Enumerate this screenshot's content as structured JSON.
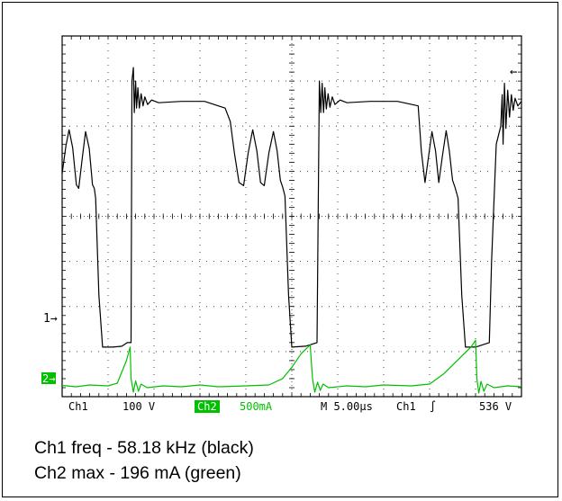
{
  "chart_data": {
    "type": "line",
    "x_unit": "divisions",
    "x_range": [
      0,
      10
    ],
    "y_range": [
      -4,
      4
    ],
    "grid": true,
    "series": [
      {
        "name": "Ch1",
        "color": "#000000",
        "points": [
          [
            0.0,
            0.95
          ],
          [
            0.08,
            1.55
          ],
          [
            0.15,
            1.92
          ],
          [
            0.23,
            1.52
          ],
          [
            0.31,
            0.7
          ],
          [
            0.36,
            0.62
          ],
          [
            0.44,
            1.3
          ],
          [
            0.51,
            1.88
          ],
          [
            0.59,
            1.5
          ],
          [
            0.66,
            0.7
          ],
          [
            0.7,
            0.62
          ],
          [
            0.73,
            0.4
          ],
          [
            0.8,
            -1.75
          ],
          [
            0.88,
            -2.9
          ],
          [
            1.1,
            -2.9
          ],
          [
            1.3,
            -2.88
          ],
          [
            1.42,
            -2.8
          ],
          [
            1.5,
            -2.8
          ],
          [
            1.52,
            3.0
          ],
          [
            1.55,
            3.3
          ],
          [
            1.57,
            2.3
          ],
          [
            1.6,
            3.0
          ],
          [
            1.62,
            2.4
          ],
          [
            1.65,
            2.85
          ],
          [
            1.68,
            2.4
          ],
          [
            1.72,
            2.72
          ],
          [
            1.76,
            2.45
          ],
          [
            1.8,
            2.65
          ],
          [
            1.86,
            2.48
          ],
          [
            1.95,
            2.58
          ],
          [
            2.1,
            2.52
          ],
          [
            2.6,
            2.55
          ],
          [
            3.1,
            2.55
          ],
          [
            3.55,
            2.4
          ],
          [
            3.66,
            2.1
          ],
          [
            3.75,
            1.4
          ],
          [
            3.85,
            0.75
          ],
          [
            3.95,
            0.68
          ],
          [
            4.05,
            1.4
          ],
          [
            4.15,
            1.92
          ],
          [
            4.24,
            1.45
          ],
          [
            4.32,
            0.75
          ],
          [
            4.4,
            0.68
          ],
          [
            4.5,
            1.4
          ],
          [
            4.6,
            1.88
          ],
          [
            4.68,
            1.45
          ],
          [
            4.75,
            0.8
          ],
          [
            4.8,
            0.65
          ],
          [
            4.85,
            0.45
          ],
          [
            4.93,
            -1.75
          ],
          [
            5.0,
            -2.9
          ],
          [
            5.3,
            -2.88
          ],
          [
            5.55,
            -2.8
          ],
          [
            5.6,
            3.0
          ],
          [
            5.63,
            2.3
          ],
          [
            5.66,
            2.95
          ],
          [
            5.69,
            2.3
          ],
          [
            5.72,
            2.85
          ],
          [
            5.75,
            2.38
          ],
          [
            5.79,
            2.72
          ],
          [
            5.83,
            2.42
          ],
          [
            5.88,
            2.65
          ],
          [
            5.94,
            2.48
          ],
          [
            6.05,
            2.58
          ],
          [
            6.2,
            2.52
          ],
          [
            6.7,
            2.55
          ],
          [
            7.3,
            2.55
          ],
          [
            7.75,
            2.45
          ],
          [
            7.82,
            1.45
          ],
          [
            7.9,
            0.75
          ],
          [
            7.98,
            1.35
          ],
          [
            8.05,
            1.88
          ],
          [
            8.13,
            1.45
          ],
          [
            8.2,
            0.75
          ],
          [
            8.28,
            1.35
          ],
          [
            8.36,
            1.9
          ],
          [
            8.43,
            1.45
          ],
          [
            8.5,
            0.8
          ],
          [
            8.55,
            0.65
          ],
          [
            8.62,
            0.4
          ],
          [
            8.7,
            -1.75
          ],
          [
            8.78,
            -2.9
          ],
          [
            9.0,
            -2.9
          ],
          [
            9.3,
            -2.8
          ],
          [
            9.35,
            -1.0
          ],
          [
            9.45,
            1.6
          ],
          [
            9.55,
            2.0
          ],
          [
            9.58,
            2.7
          ],
          [
            9.6,
            1.6
          ],
          [
            9.63,
            2.95
          ],
          [
            9.66,
            1.95
          ],
          [
            9.7,
            2.8
          ],
          [
            9.74,
            2.2
          ],
          [
            9.78,
            2.7
          ],
          [
            9.82,
            2.35
          ],
          [
            9.86,
            2.62
          ],
          [
            9.92,
            2.45
          ],
          [
            10.0,
            2.55
          ]
        ]
      },
      {
        "name": "Ch2",
        "color": "#00c000",
        "points": [
          [
            0.0,
            -3.75
          ],
          [
            0.3,
            -3.78
          ],
          [
            0.6,
            -3.74
          ],
          [
            1.0,
            -3.76
          ],
          [
            1.2,
            -3.7
          ],
          [
            1.3,
            -3.45
          ],
          [
            1.4,
            -3.2
          ],
          [
            1.48,
            -2.9
          ],
          [
            1.5,
            -3.6
          ],
          [
            1.55,
            -3.9
          ],
          [
            1.6,
            -3.65
          ],
          [
            1.66,
            -3.88
          ],
          [
            1.72,
            -3.72
          ],
          [
            1.85,
            -3.8
          ],
          [
            2.2,
            -3.76
          ],
          [
            2.6,
            -3.78
          ],
          [
            3.0,
            -3.74
          ],
          [
            3.4,
            -3.78
          ],
          [
            4.0,
            -3.76
          ],
          [
            4.5,
            -3.74
          ],
          [
            4.8,
            -3.6
          ],
          [
            5.0,
            -3.35
          ],
          [
            5.2,
            -3.05
          ],
          [
            5.4,
            -2.85
          ],
          [
            5.45,
            -3.6
          ],
          [
            5.5,
            -3.9
          ],
          [
            5.56,
            -3.68
          ],
          [
            5.62,
            -3.86
          ],
          [
            5.68,
            -3.72
          ],
          [
            5.8,
            -3.8
          ],
          [
            6.2,
            -3.76
          ],
          [
            6.6,
            -3.78
          ],
          [
            7.0,
            -3.74
          ],
          [
            7.6,
            -3.76
          ],
          [
            8.0,
            -3.72
          ],
          [
            8.3,
            -3.5
          ],
          [
            8.6,
            -3.2
          ],
          [
            8.9,
            -2.9
          ],
          [
            9.0,
            -2.75
          ],
          [
            9.03,
            -3.6
          ],
          [
            9.07,
            -3.92
          ],
          [
            9.12,
            -3.66
          ],
          [
            9.18,
            -3.88
          ],
          [
            9.25,
            -3.72
          ],
          [
            9.4,
            -3.8
          ],
          [
            9.7,
            -3.76
          ],
          [
            10.0,
            -3.78
          ]
        ]
      }
    ],
    "markers": {
      "ch1_level": "1→",
      "ch2_level": "2→",
      "trigger_level": "←"
    }
  },
  "status_bar": {
    "ch1_label": "Ch1",
    "ch1_scale": "100 V",
    "ch2_label": "Ch2",
    "ch2_scale": "500mA",
    "timebase": "M 5.00µs",
    "trigger_source": "Ch1",
    "trigger_slope": "∫",
    "trigger_value": "536 V"
  },
  "caption": {
    "line1": "Ch1 freq - 58.18 kHz (black)",
    "line2": "Ch2 max - 196 mA (green)"
  },
  "colors": {
    "ch1": "#000000",
    "ch2": "#00c000",
    "ch2_badge_bg": "#00c000"
  }
}
